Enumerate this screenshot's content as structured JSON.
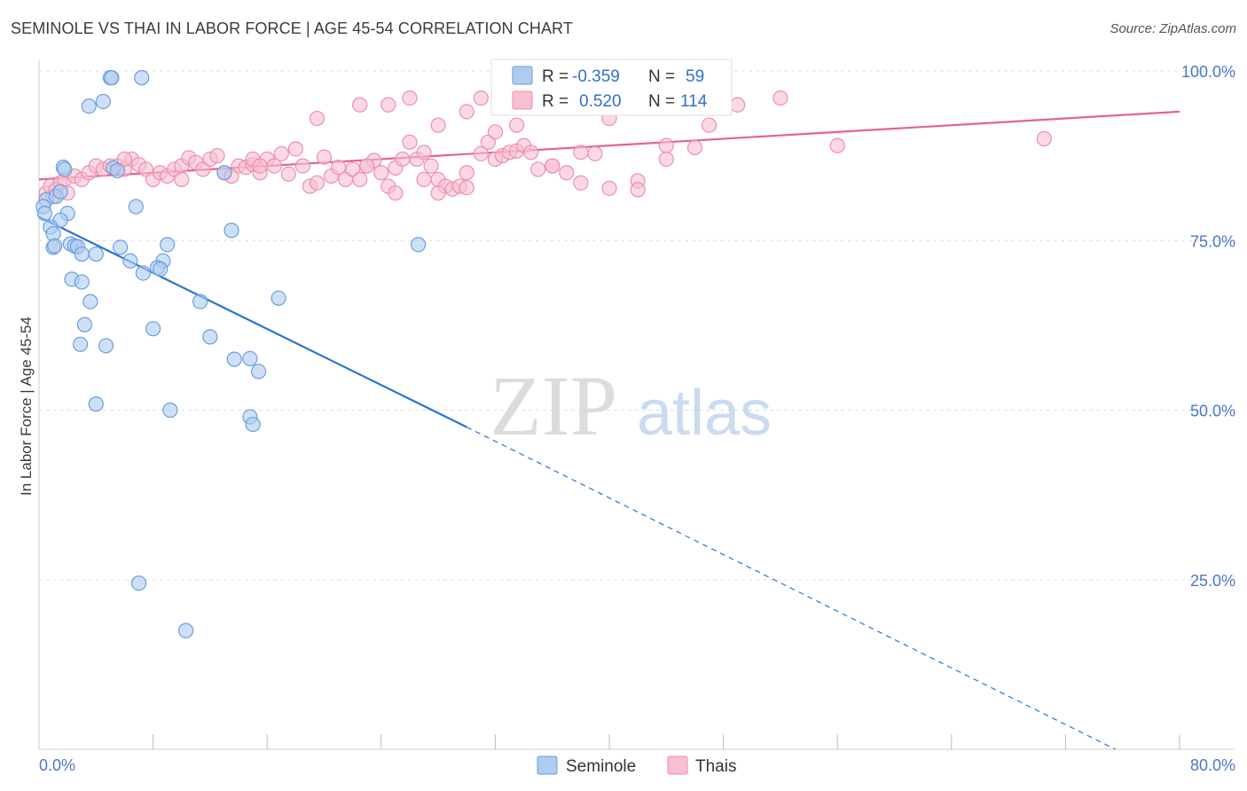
{
  "title": "SEMINOLE VS THAI IN LABOR FORCE | AGE 45-54 CORRELATION CHART",
  "source": "Source: ZipAtlas.com",
  "watermark": {
    "zip": "ZIP",
    "atlas": "atlas"
  },
  "colors": {
    "seminole_fill": "#aecbf0",
    "seminole_stroke": "#6a9ee0",
    "seminole_line": "#2c73d2",
    "thais_fill": "#f7bfd1",
    "thais_stroke": "#ec8fb0",
    "thais_line": "#e3638f",
    "tick_label": "#4a77c4",
    "grid": "#dddddd"
  },
  "legend_top": {
    "rows": [
      {
        "r_label": "R =",
        "r_value": "-0.359",
        "n_label": "N =",
        "n_value": "59"
      },
      {
        "r_label": "R =",
        "r_value": "0.520",
        "n_label": "N =",
        "n_value": "114"
      }
    ]
  },
  "legend_bottom": {
    "items": [
      "Seminole",
      "Thais"
    ]
  },
  "chart_data": {
    "type": "scatter",
    "ylabel": "In Labor Force | Age 45-54",
    "xlim": [
      0,
      0.8
    ],
    "ylim": [
      0,
      1.0
    ],
    "x_tick_labels": [
      "0.0%",
      "80.0%"
    ],
    "y_tick_labels": [
      "100.0%",
      "75.0%",
      "50.0%",
      "25.0%"
    ],
    "y_ticks": [
      1.0,
      0.75,
      0.5,
      0.25
    ],
    "x_tick_marks": [
      0.08,
      0.16,
      0.24,
      0.32,
      0.4,
      0.48,
      0.56,
      0.64,
      0.72,
      0.8
    ],
    "grid": true,
    "series": [
      {
        "name": "Seminole",
        "trend": {
          "x0": 0.0,
          "y0": 0.785,
          "x1": 0.3,
          "y1": 0.475,
          "dash_to_x": 0.755,
          "dash_to_y": 0.0
        },
        "points": [
          [
            0.05,
            0.99
          ],
          [
            0.051,
            0.99
          ],
          [
            0.072,
            0.99
          ],
          [
            0.045,
            0.955
          ],
          [
            0.035,
            0.948
          ],
          [
            0.017,
            0.858
          ],
          [
            0.018,
            0.855
          ],
          [
            0.052,
            0.857
          ],
          [
            0.055,
            0.853
          ],
          [
            0.13,
            0.85
          ],
          [
            0.005,
            0.81
          ],
          [
            0.012,
            0.815
          ],
          [
            0.015,
            0.822
          ],
          [
            0.003,
            0.8
          ],
          [
            0.004,
            0.79
          ],
          [
            0.02,
            0.79
          ],
          [
            0.015,
            0.78
          ],
          [
            0.008,
            0.77
          ],
          [
            0.01,
            0.76
          ],
          [
            0.068,
            0.8
          ],
          [
            0.135,
            0.765
          ],
          [
            0.022,
            0.745
          ],
          [
            0.025,
            0.742
          ],
          [
            0.027,
            0.741
          ],
          [
            0.03,
            0.73
          ],
          [
            0.04,
            0.73
          ],
          [
            0.057,
            0.74
          ],
          [
            0.09,
            0.744
          ],
          [
            0.266,
            0.744
          ],
          [
            0.01,
            0.74
          ],
          [
            0.011,
            0.742
          ],
          [
            0.064,
            0.72
          ],
          [
            0.087,
            0.72
          ],
          [
            0.083,
            0.71
          ],
          [
            0.073,
            0.702
          ],
          [
            0.085,
            0.708
          ],
          [
            0.023,
            0.693
          ],
          [
            0.03,
            0.689
          ],
          [
            0.168,
            0.665
          ],
          [
            0.036,
            0.66
          ],
          [
            0.113,
            0.66
          ],
          [
            0.032,
            0.626
          ],
          [
            0.08,
            0.62
          ],
          [
            0.12,
            0.608
          ],
          [
            0.029,
            0.597
          ],
          [
            0.047,
            0.595
          ],
          [
            0.148,
            0.576
          ],
          [
            0.137,
            0.575
          ],
          [
            0.154,
            0.557
          ],
          [
            0.04,
            0.509
          ],
          [
            0.092,
            0.5
          ],
          [
            0.148,
            0.49
          ],
          [
            0.15,
            0.479
          ],
          [
            0.07,
            0.245
          ],
          [
            0.103,
            0.175
          ]
        ]
      },
      {
        "name": "Thais",
        "trend": {
          "x0": 0.0,
          "y0": 0.84,
          "x1": 0.8,
          "y1": 0.94
        },
        "points": [
          [
            0.005,
            0.82
          ],
          [
            0.008,
            0.83
          ],
          [
            0.01,
            0.815
          ],
          [
            0.012,
            0.825
          ],
          [
            0.015,
            0.835
          ],
          [
            0.018,
            0.84
          ],
          [
            0.02,
            0.82
          ],
          [
            0.025,
            0.845
          ],
          [
            0.03,
            0.84
          ],
          [
            0.035,
            0.85
          ],
          [
            0.04,
            0.86
          ],
          [
            0.045,
            0.855
          ],
          [
            0.05,
            0.86
          ],
          [
            0.055,
            0.86
          ],
          [
            0.06,
            0.855
          ],
          [
            0.065,
            0.87
          ],
          [
            0.07,
            0.862
          ],
          [
            0.075,
            0.855
          ],
          [
            0.08,
            0.84
          ],
          [
            0.085,
            0.85
          ],
          [
            0.09,
            0.845
          ],
          [
            0.095,
            0.855
          ],
          [
            0.1,
            0.86
          ],
          [
            0.105,
            0.872
          ],
          [
            0.11,
            0.865
          ],
          [
            0.115,
            0.855
          ],
          [
            0.12,
            0.87
          ],
          [
            0.125,
            0.875
          ],
          [
            0.13,
            0.85
          ],
          [
            0.135,
            0.845
          ],
          [
            0.14,
            0.86
          ],
          [
            0.145,
            0.858
          ],
          [
            0.15,
            0.862
          ],
          [
            0.155,
            0.85
          ],
          [
            0.16,
            0.87
          ],
          [
            0.165,
            0.86
          ],
          [
            0.17,
            0.878
          ],
          [
            0.175,
            0.848
          ],
          [
            0.18,
            0.885
          ],
          [
            0.185,
            0.86
          ],
          [
            0.19,
            0.83
          ],
          [
            0.195,
            0.835
          ],
          [
            0.2,
            0.873
          ],
          [
            0.205,
            0.845
          ],
          [
            0.21,
            0.858
          ],
          [
            0.215,
            0.84
          ],
          [
            0.22,
            0.855
          ],
          [
            0.225,
            0.84
          ],
          [
            0.23,
            0.86
          ],
          [
            0.235,
            0.868
          ],
          [
            0.24,
            0.85
          ],
          [
            0.245,
            0.83
          ],
          [
            0.25,
            0.857
          ],
          [
            0.255,
            0.87
          ],
          [
            0.26,
            0.895
          ],
          [
            0.265,
            0.87
          ],
          [
            0.27,
            0.88
          ],
          [
            0.275,
            0.86
          ],
          [
            0.28,
            0.84
          ],
          [
            0.285,
            0.83
          ],
          [
            0.29,
            0.826
          ],
          [
            0.295,
            0.83
          ],
          [
            0.3,
            0.828
          ],
          [
            0.31,
            0.878
          ],
          [
            0.315,
            0.895
          ],
          [
            0.32,
            0.87
          ],
          [
            0.325,
            0.875
          ],
          [
            0.33,
            0.88
          ],
          [
            0.335,
            0.882
          ],
          [
            0.34,
            0.89
          ],
          [
            0.345,
            0.88
          ],
          [
            0.35,
            0.855
          ],
          [
            0.36,
            0.86
          ],
          [
            0.37,
            0.85
          ],
          [
            0.38,
            0.88
          ],
          [
            0.39,
            0.878
          ],
          [
            0.4,
            0.827
          ],
          [
            0.225,
            0.95
          ],
          [
            0.245,
            0.95
          ],
          [
            0.26,
            0.96
          ],
          [
            0.195,
            0.93
          ],
          [
            0.28,
            0.92
          ],
          [
            0.32,
            0.91
          ],
          [
            0.335,
            0.92
          ],
          [
            0.4,
            0.93
          ],
          [
            0.42,
            0.838
          ],
          [
            0.44,
            0.89
          ],
          [
            0.46,
            0.887
          ],
          [
            0.47,
            0.92
          ],
          [
            0.49,
            0.95
          ],
          [
            0.52,
            0.96
          ],
          [
            0.56,
            0.89
          ],
          [
            0.705,
            0.9
          ],
          [
            0.42,
            0.825
          ],
          [
            0.36,
            0.86
          ],
          [
            0.27,
            0.84
          ],
          [
            0.28,
            0.82
          ],
          [
            0.3,
            0.85
          ],
          [
            0.15,
            0.87
          ],
          [
            0.23,
            0.86
          ],
          [
            0.25,
            0.82
          ],
          [
            0.38,
            0.835
          ],
          [
            0.44,
            0.87
          ],
          [
            0.46,
            0.99
          ],
          [
            0.47,
            0.95
          ],
          [
            0.36,
            0.99
          ],
          [
            0.3,
            0.94
          ],
          [
            0.31,
            0.96
          ],
          [
            0.155,
            0.86
          ],
          [
            0.1,
            0.84
          ],
          [
            0.06,
            0.87
          ]
        ]
      }
    ]
  }
}
